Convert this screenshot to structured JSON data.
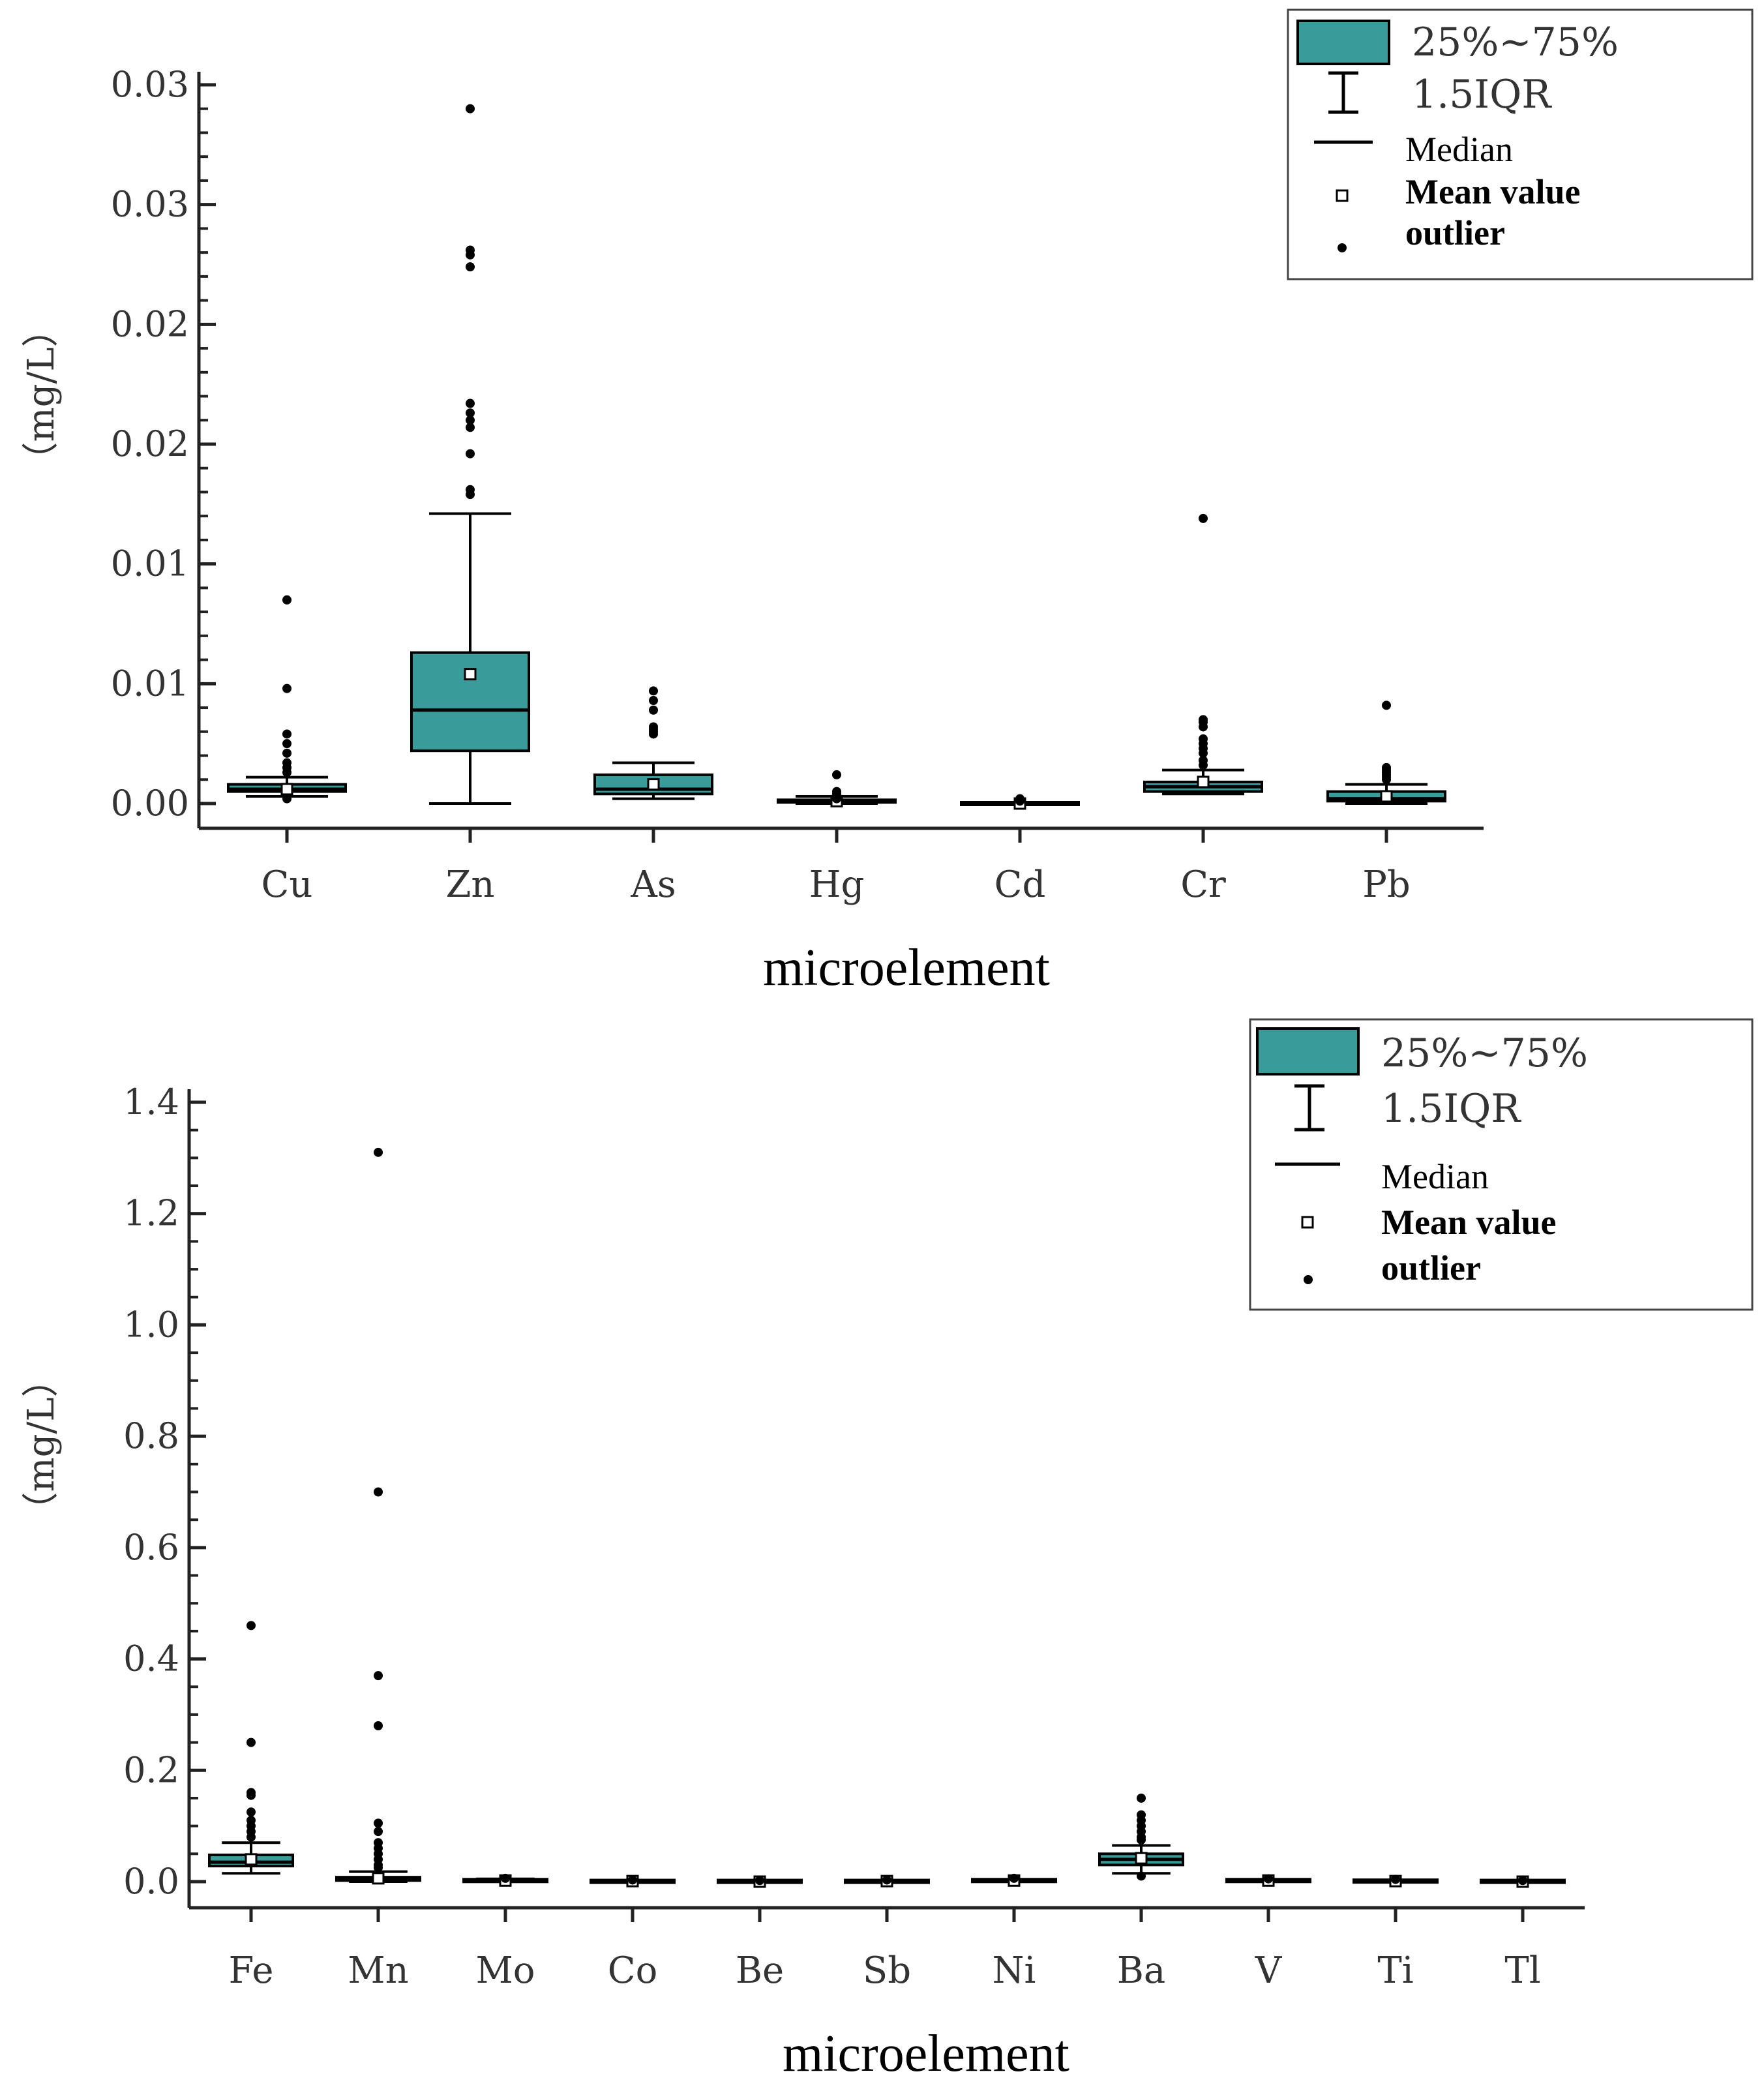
{
  "colors": {
    "box_fill": "#3a9c9a",
    "stroke": "#000000",
    "axis": "#222222"
  },
  "chart_data": [
    {
      "type": "box",
      "xlabel": "microelement",
      "ylabel": "（mg/L）",
      "y_tick_labels": [
        "0.00",
        "0.01",
        "0.01",
        "0.02",
        "0.02",
        "0.03",
        "0.03"
      ],
      "ylim": [
        0,
        0.03
      ],
      "categories": [
        "Cu",
        "Zn",
        "As",
        "Hg",
        "Cd",
        "Cr",
        "Pb"
      ],
      "boxes": [
        {
          "name": "Cu",
          "whisker_low": 0.0003,
          "q1": 0.0005,
          "median": 0.0006,
          "q3": 0.0008,
          "whisker_high": 0.0011,
          "mean": 0.0006,
          "outliers": [
            0.0085,
            0.0048,
            0.0029,
            0.0025,
            0.0021,
            0.0017,
            0.0015,
            0.0013,
            0.0002
          ]
        },
        {
          "name": "Zn",
          "whisker_low": 0.0,
          "q1": 0.0022,
          "median": 0.0039,
          "q3": 0.0063,
          "whisker_high": 0.0121,
          "mean": 0.0054,
          "outliers": [
            0.029,
            0.0231,
            0.0229,
            0.0224,
            0.0167,
            0.0163,
            0.016,
            0.0157,
            0.0146,
            0.0131,
            0.0129
          ]
        },
        {
          "name": "As",
          "whisker_low": 0.0002,
          "q1": 0.0004,
          "median": 0.0006,
          "q3": 0.0012,
          "whisker_high": 0.0017,
          "mean": 0.0008,
          "outliers": [
            0.0047,
            0.0043,
            0.0039,
            0.0032,
            0.0031,
            0.003,
            0.0029
          ]
        },
        {
          "name": "Hg",
          "whisker_low": 0.0,
          "q1": 5e-05,
          "median": 0.0001,
          "q3": 0.00015,
          "whisker_high": 0.0003,
          "mean": 0.0001,
          "outliers": [
            0.0012,
            0.0005,
            0.0004,
            0.0003,
            0.0002
          ]
        },
        {
          "name": "Cd",
          "whisker_low": 0.0,
          "q1": 0.0,
          "median": 0.0,
          "q3": 0.0,
          "whisker_high": 0.0,
          "mean": 0.0,
          "outliers": [
            0.0002,
            0.0001
          ]
        },
        {
          "name": "Cr",
          "whisker_low": 0.0004,
          "q1": 0.0005,
          "median": 0.0007,
          "q3": 0.0009,
          "whisker_high": 0.0014,
          "mean": 0.0009,
          "outliers": [
            0.0119,
            0.0035,
            0.0034,
            0.0032,
            0.0027,
            0.0025,
            0.0023,
            0.0021,
            0.0018,
            0.0016
          ]
        },
        {
          "name": "Pb",
          "whisker_low": 0.0,
          "q1": 0.0001,
          "median": 0.0002,
          "q3": 0.0005,
          "whisker_high": 0.0008,
          "mean": 0.0003,
          "outliers": [
            0.0041,
            0.0015,
            0.0014,
            0.0013,
            0.0012,
            0.0011,
            0.001
          ]
        }
      ],
      "legend": {
        "placement": "top-right",
        "box_label": "25%~75%",
        "whisker_label": "1.5IQR",
        "median_label": "Median",
        "mean_label": "Mean value",
        "outlier_label": "outlier"
      }
    },
    {
      "type": "box",
      "xlabel": "microelement",
      "ylabel": "（mg/L）",
      "y_tick_labels": [
        "0.0",
        "0.2",
        "0.4",
        "0.6",
        "0.8",
        "1.0",
        "1.2",
        "1.4"
      ],
      "ylim": [
        0,
        1.4
      ],
      "categories": [
        "Fe",
        "Mn",
        "Mo",
        "Co",
        "Be",
        "Sb",
        "Ni",
        "Ba",
        "V",
        "Ti",
        "Tl"
      ],
      "boxes": [
        {
          "name": "Fe",
          "whisker_low": 0.015,
          "q1": 0.028,
          "median": 0.035,
          "q3": 0.048,
          "whisker_high": 0.07,
          "mean": 0.04,
          "outliers": [
            0.46,
            0.25,
            0.16,
            0.155,
            0.125,
            0.11,
            0.1,
            0.09,
            0.08
          ]
        },
        {
          "name": "Mn",
          "whisker_low": 0.0,
          "q1": 0.002,
          "median": 0.004,
          "q3": 0.008,
          "whisker_high": 0.018,
          "mean": 0.006,
          "outliers": [
            1.31,
            0.7,
            0.37,
            0.28,
            0.105,
            0.09,
            0.07,
            0.06,
            0.05,
            0.04,
            0.03,
            0.025
          ]
        },
        {
          "name": "Mo",
          "whisker_low": 0.0,
          "q1": 0.001,
          "median": 0.002,
          "q3": 0.003,
          "whisker_high": 0.005,
          "mean": 0.002,
          "outliers": [
            0.006
          ]
        },
        {
          "name": "Co",
          "whisker_low": 0.0,
          "q1": 0.0,
          "median": 0.001,
          "q3": 0.001,
          "whisker_high": 0.002,
          "mean": 0.001,
          "outliers": [
            0.003
          ]
        },
        {
          "name": "Be",
          "whisker_low": 0.0,
          "q1": 0.0,
          "median": 0.0,
          "q3": 0.001,
          "whisker_high": 0.001,
          "mean": 0.0,
          "outliers": [
            0.002
          ]
        },
        {
          "name": "Sb",
          "whisker_low": 0.0,
          "q1": 0.0,
          "median": 0.001,
          "q3": 0.001,
          "whisker_high": 0.002,
          "mean": 0.001,
          "outliers": [
            0.003
          ]
        },
        {
          "name": "Ni",
          "whisker_low": 0.0,
          "q1": 0.001,
          "median": 0.002,
          "q3": 0.003,
          "whisker_high": 0.004,
          "mean": 0.002,
          "outliers": [
            0.006
          ]
        },
        {
          "name": "Ba",
          "whisker_low": 0.015,
          "q1": 0.03,
          "median": 0.04,
          "q3": 0.05,
          "whisker_high": 0.065,
          "mean": 0.042,
          "outliers": [
            0.15,
            0.12,
            0.11,
            0.1,
            0.09,
            0.08,
            0.075,
            0.01
          ]
        },
        {
          "name": "V",
          "whisker_low": 0.0,
          "q1": 0.001,
          "median": 0.002,
          "q3": 0.003,
          "whisker_high": 0.004,
          "mean": 0.002,
          "outliers": [
            0.005
          ]
        },
        {
          "name": "Ti",
          "whisker_low": 0.0,
          "q1": 0.0,
          "median": 0.001,
          "q3": 0.002,
          "whisker_high": 0.003,
          "mean": 0.001,
          "outliers": [
            0.004
          ]
        },
        {
          "name": "Tl",
          "whisker_low": 0.0,
          "q1": 0.0,
          "median": 0.0,
          "q3": 0.001,
          "whisker_high": 0.001,
          "mean": 0.0,
          "outliers": [
            0.002
          ]
        }
      ],
      "legend": {
        "placement": "top-right",
        "box_label": "25%~75%",
        "whisker_label": "1.5IQR",
        "median_label": "Median",
        "mean_label": "Mean value",
        "outlier_label": "outlier"
      }
    }
  ]
}
